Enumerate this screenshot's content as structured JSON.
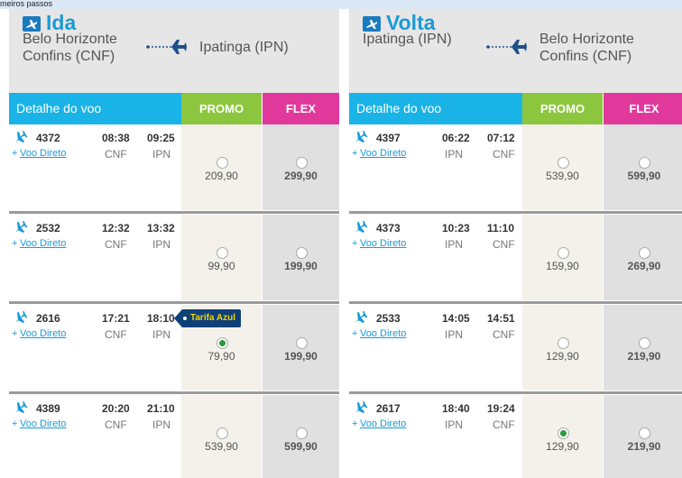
{
  "top_bar": "meiros passos",
  "panels": [
    {
      "title": "Ida",
      "origin": [
        "Belo Horizonte",
        "Confins (CNF)"
      ],
      "destination": [
        "Ipatinga (IPN)"
      ],
      "header": {
        "detail": "Detalhe do voo",
        "promo": "PROMO",
        "flex": "FLEX"
      },
      "flights": [
        {
          "number": "4372",
          "prefix": "+",
          "link": "Voo Direto",
          "dep": "08:38",
          "arr": "09:25",
          "from": "CNF",
          "to": "IPN",
          "promo": "209,90",
          "flex": "299,90"
        },
        {
          "number": "2532",
          "prefix": "+",
          "link": "Voo Direto",
          "dep": "12:32",
          "arr": "13:32",
          "from": "CNF",
          "to": "IPN",
          "promo": "99,90",
          "flex": "199,90"
        },
        {
          "number": "2616",
          "prefix": "+",
          "link": "Voo Direto",
          "dep": "17:21",
          "arr": "18:10",
          "from": "CNF",
          "to": "IPN",
          "promo": "79,90",
          "flex": "199,90",
          "badge": "Tarifa Azul",
          "selected": "promo"
        },
        {
          "number": "4389",
          "prefix": "+",
          "link": "Voo Direto",
          "dep": "20:20",
          "arr": "21:10",
          "from": "CNF",
          "to": "IPN",
          "promo": "539,90",
          "flex": "599,90"
        }
      ]
    },
    {
      "title": "Volta",
      "origin": [
        "Ipatinga (IPN)"
      ],
      "destination": [
        "Belo Horizonte",
        "Confins (CNF)"
      ],
      "header": {
        "detail": "Detalhe do voo",
        "promo": "PROMO",
        "flex": "FLEX"
      },
      "flights": [
        {
          "number": "4397",
          "prefix": "+",
          "link": "Voo Direto",
          "dep": "06:22",
          "arr": "07:12",
          "from": "IPN",
          "to": "CNF",
          "promo": "539,90",
          "flex": "599,90"
        },
        {
          "number": "4373",
          "prefix": "+",
          "link": "Voo Direto",
          "dep": "10:23",
          "arr": "11:10",
          "from": "IPN",
          "to": "CNF",
          "promo": "159,90",
          "flex": "269,90"
        },
        {
          "number": "2533",
          "prefix": "+",
          "link": "Voo Direto",
          "dep": "14:05",
          "arr": "14:51",
          "from": "IPN",
          "to": "CNF",
          "promo": "129,90",
          "flex": "219,90"
        },
        {
          "number": "2617",
          "prefix": "+",
          "link": "Voo Direto",
          "dep": "18:40",
          "arr": "19:24",
          "from": "IPN",
          "to": "CNF",
          "promo": "129,90",
          "flex": "219,90",
          "selected": "promo"
        }
      ]
    }
  ]
}
